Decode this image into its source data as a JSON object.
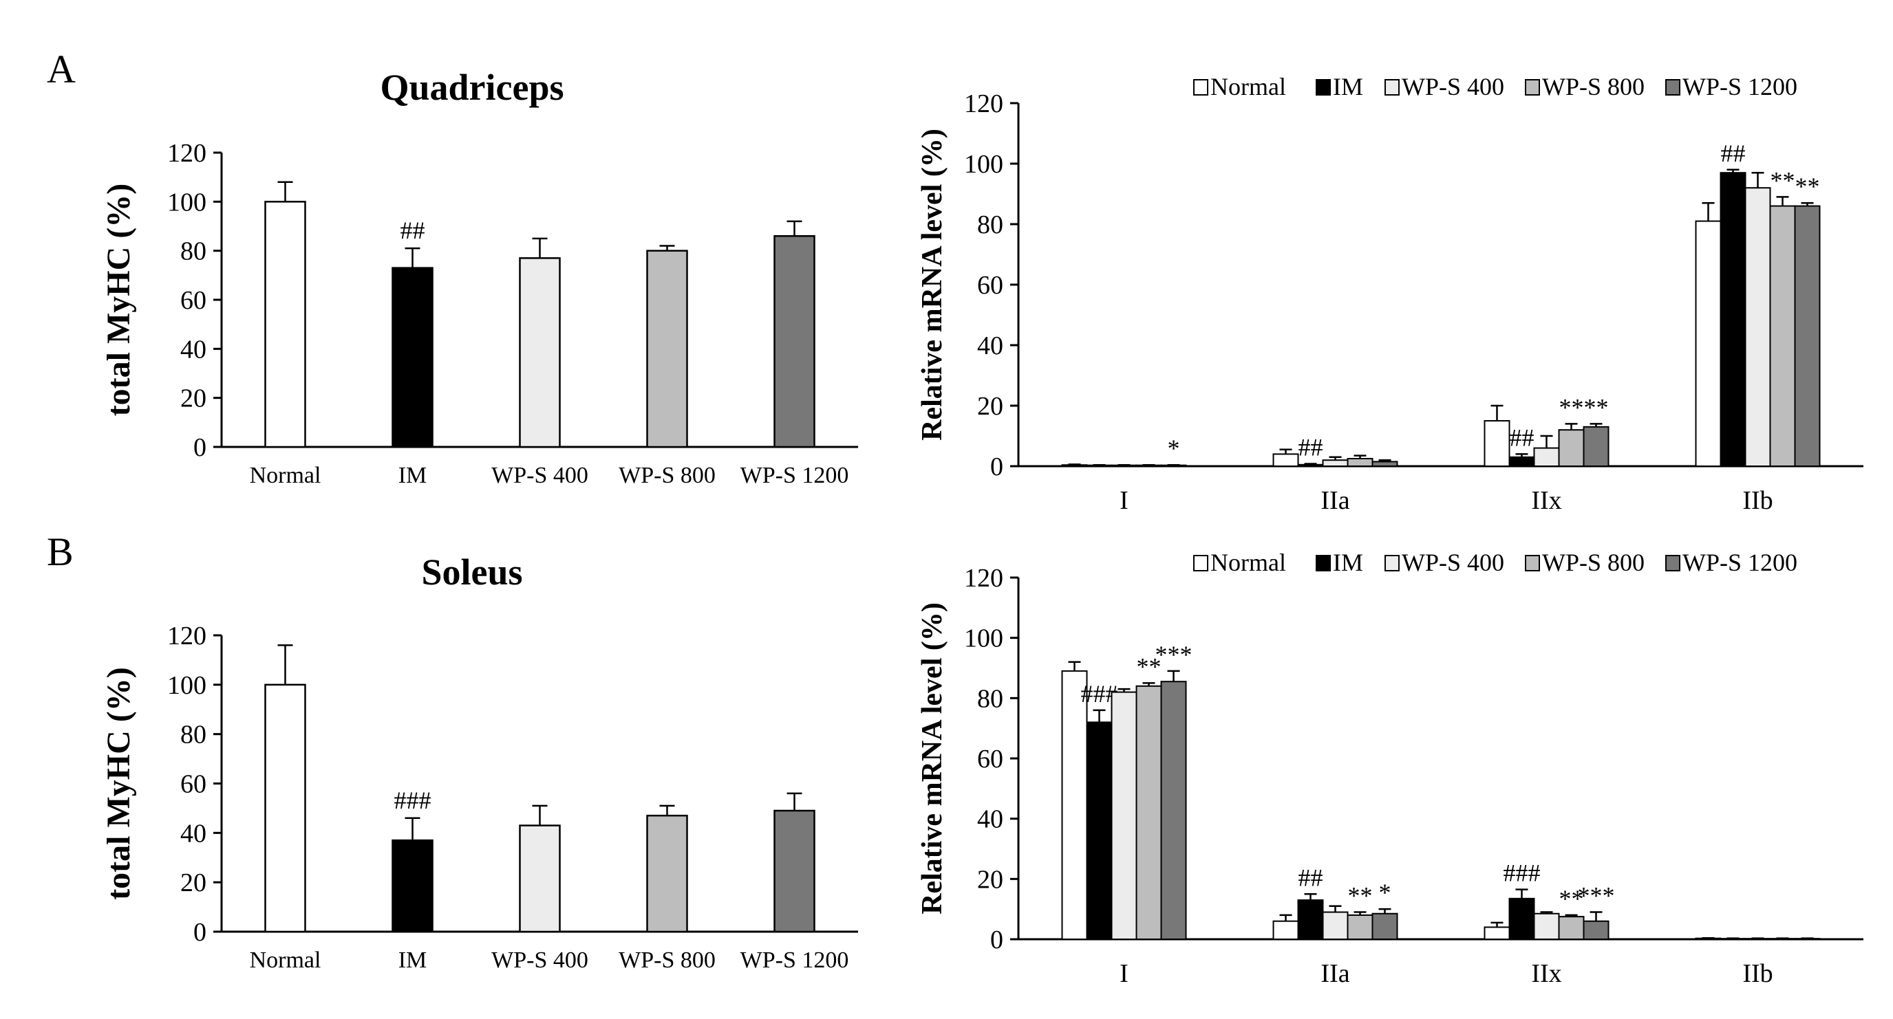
{
  "panels": [
    {
      "letter": "A"
    },
    {
      "letter": "B"
    }
  ],
  "groups": [
    "Normal",
    "IM",
    "WP-S 400",
    "WP-S 800",
    "WP-S 1200"
  ],
  "colors": {
    "Normal": "#ffffff",
    "IM": "#000000",
    "WP-S 400": "#ececec",
    "WP-S 800": "#bdbdbd",
    "WP-S 1200": "#787878"
  },
  "chart_data": [
    {
      "id": "A-left",
      "type": "bar",
      "title": "Quadriceps",
      "xlabel": "",
      "ylabel": "total MyHC (%)",
      "ylim": [
        0,
        120
      ],
      "yticks": [
        0,
        20,
        40,
        60,
        80,
        100,
        120
      ],
      "categories": [
        "Normal",
        "IM",
        "WP-S 400",
        "WP-S 800",
        "WP-S 1200"
      ],
      "values": [
        100,
        73,
        77,
        80,
        86
      ],
      "errors": [
        8,
        8,
        8,
        2,
        6
      ],
      "annotations": [
        "",
        "##",
        "",
        "",
        ""
      ]
    },
    {
      "id": "A-right",
      "type": "bar",
      "title": "",
      "xlabel": "",
      "ylabel": "Relative mRNA level (%)",
      "ylim": [
        0,
        120
      ],
      "yticks": [
        0,
        20,
        40,
        60,
        80,
        100,
        120
      ],
      "legend": [
        "Normal",
        "IM",
        "WP-S 400",
        "WP-S 800",
        "WP-S 1200"
      ],
      "categories": [
        "I",
        "IIa",
        "IIx",
        "IIb"
      ],
      "series": [
        {
          "name": "Normal",
          "values": [
            0.4,
            4,
            15,
            81
          ],
          "errors": [
            0.2,
            1.5,
            5,
            6
          ],
          "annotations": [
            "",
            "",
            "",
            ""
          ]
        },
        {
          "name": "IM",
          "values": [
            0.3,
            0.5,
            3,
            97
          ],
          "errors": [
            0.1,
            0.3,
            1,
            1
          ],
          "annotations": [
            "",
            "##",
            "##",
            "##"
          ]
        },
        {
          "name": "WP-S 400",
          "values": [
            0.3,
            2,
            6,
            92
          ],
          "errors": [
            0.1,
            1,
            4,
            5
          ],
          "annotations": [
            "",
            "",
            "",
            ""
          ]
        },
        {
          "name": "WP-S 800",
          "values": [
            0.3,
            2.5,
            12,
            86
          ],
          "errors": [
            0.1,
            1,
            2,
            3
          ],
          "annotations": [
            "",
            "",
            "**",
            "**"
          ]
        },
        {
          "name": "WP-S 1200",
          "values": [
            0.3,
            1.5,
            13,
            86
          ],
          "errors": [
            0.1,
            0.5,
            1,
            1
          ],
          "annotations": [
            "*",
            "",
            "**",
            "**"
          ]
        }
      ]
    },
    {
      "id": "B-left",
      "type": "bar",
      "title": "Soleus",
      "xlabel": "",
      "ylabel": "total MyHC (%)",
      "ylim": [
        0,
        120
      ],
      "yticks": [
        0,
        20,
        40,
        60,
        80,
        100,
        120
      ],
      "categories": [
        "Normal",
        "IM",
        "WP-S 400",
        "WP-S 800",
        "WP-S 1200"
      ],
      "values": [
        100,
        37,
        43,
        47,
        49
      ],
      "errors": [
        16,
        9,
        8,
        4,
        7
      ],
      "annotations": [
        "",
        "###",
        "",
        "",
        ""
      ]
    },
    {
      "id": "B-right",
      "type": "bar",
      "title": "",
      "xlabel": "",
      "ylabel": "Relative mRNA level (%)",
      "ylim": [
        0,
        120
      ],
      "yticks": [
        0,
        20,
        40,
        60,
        80,
        100,
        120
      ],
      "legend": [
        "Normal",
        "IM",
        "WP-S 400",
        "WP-S 800",
        "WP-S 1200"
      ],
      "categories": [
        "I",
        "IIa",
        "IIx",
        "IIb"
      ],
      "series": [
        {
          "name": "Normal",
          "values": [
            89,
            6,
            4,
            0.3
          ],
          "errors": [
            3,
            2,
            1.5,
            0.1
          ],
          "annotations": [
            "",
            "",
            "",
            ""
          ]
        },
        {
          "name": "IM",
          "values": [
            72,
            13,
            13.5,
            0.2
          ],
          "errors": [
            4,
            2,
            3,
            0.1
          ],
          "annotations": [
            "###",
            "##",
            "###",
            ""
          ]
        },
        {
          "name": "WP-S 400",
          "values": [
            82,
            9,
            8.5,
            0.2
          ],
          "errors": [
            1,
            2,
            0.5,
            0.1
          ],
          "annotations": [
            "",
            "",
            "",
            ""
          ]
        },
        {
          "name": "WP-S 800",
          "values": [
            84,
            8,
            7.5,
            0.2
          ],
          "errors": [
            1,
            1,
            0.5,
            0.1
          ],
          "annotations": [
            "**",
            "**",
            "**",
            ""
          ]
        },
        {
          "name": "WP-S 1200",
          "values": [
            85.5,
            8.5,
            6,
            0.2
          ],
          "errors": [
            3.5,
            1.5,
            3,
            0.1
          ],
          "annotations": [
            "***",
            "*",
            "***",
            ""
          ]
        }
      ]
    }
  ]
}
